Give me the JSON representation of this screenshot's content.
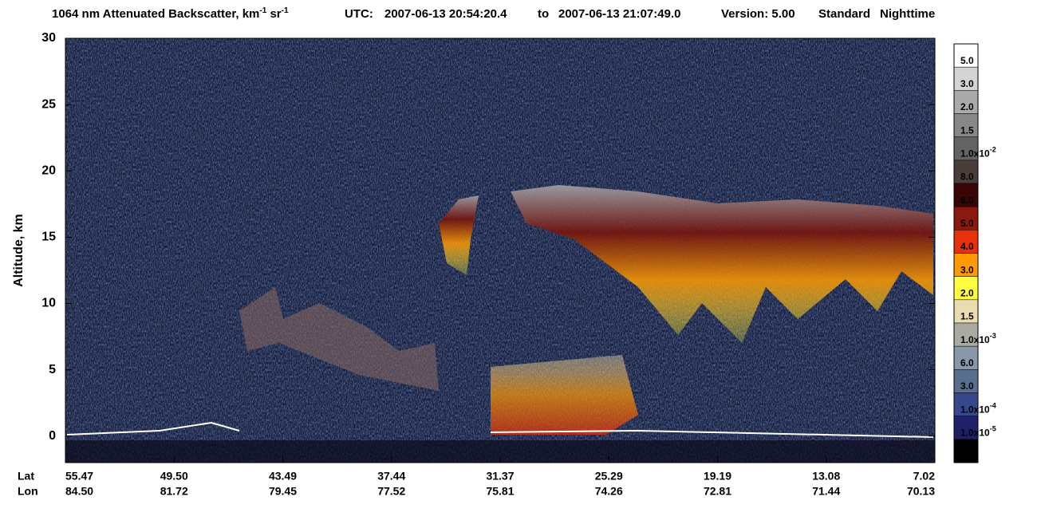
{
  "chart_data": {
    "type": "curtain",
    "title": {
      "main": [
        "1064 nm Attenuated Backscatter, km",
        "-1",
        " sr",
        "-1"
      ],
      "utc_label": "UTC:",
      "start": "2007-06-13 20:54:20.4",
      "to": "to",
      "end": "2007-06-13 21:07:49.0",
      "version": "Version: 5.00",
      "product": "Standard",
      "time": "Nighttime"
    },
    "ylabel": "Altitude, km",
    "ylim": [
      -2,
      30
    ],
    "yticks": [
      0,
      5,
      10,
      15,
      20,
      25,
      30
    ],
    "x_row_names": [
      "Lat",
      "Lon"
    ],
    "lat": [
      "55.47",
      "49.50",
      "43.49",
      "37.44",
      "31.37",
      "25.29",
      "19.19",
      "13.08",
      "7.02"
    ],
    "lon": [
      "84.50",
      "81.72",
      "79.45",
      "77.52",
      "75.81",
      "74.26",
      "72.81",
      "71.44",
      "70.13"
    ],
    "colorbar": {
      "colors": [
        "#ffffff",
        "#d4d4d4",
        "#aaaaaa",
        "#888888",
        "#636363",
        "#4a3e3a",
        "#3a0505",
        "#8a1a10",
        "#e8300a",
        "#ff9a00",
        "#ffff40",
        "#e8dcb0",
        "#aaaaa0",
        "#8898a8",
        "#5a6e90",
        "#35488a",
        "#202068",
        "#000000"
      ],
      "labels": [
        {
          "base": "5.0"
        },
        {
          "base": "3.0"
        },
        {
          "base": "2.0"
        },
        {
          "base": "1.5"
        },
        {
          "base": "1.0x10",
          "exp": "-2"
        },
        {
          "base": "8.0"
        },
        {
          "base": "6.0"
        },
        {
          "base": "5.0"
        },
        {
          "base": "4.0"
        },
        {
          "base": "3.0"
        },
        {
          "base": "2.0"
        },
        {
          "base": "1.5"
        },
        {
          "base": "1.0x10",
          "exp": "-3"
        },
        {
          "base": "6.0"
        },
        {
          "base": "3.0"
        },
        {
          "base": "1.0x10",
          "exp": "-4"
        },
        {
          "base": "1.0x10",
          "exp": "-5"
        }
      ]
    }
  }
}
